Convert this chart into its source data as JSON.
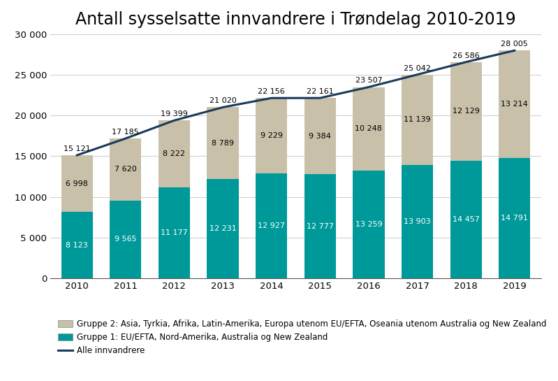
{
  "title": "Antall sysselsatte innvandrere i Trøndelag 2010-2019",
  "years": [
    2010,
    2011,
    2012,
    2013,
    2014,
    2015,
    2016,
    2017,
    2018,
    2019
  ],
  "gruppe1": [
    8123,
    9565,
    11177,
    12231,
    12927,
    12777,
    13259,
    13903,
    14457,
    14791
  ],
  "gruppe2": [
    6998,
    7620,
    8222,
    8789,
    9229,
    9384,
    10248,
    11139,
    12129,
    13214
  ],
  "totals": [
    15121,
    17185,
    19399,
    21020,
    22156,
    22161,
    23507,
    25042,
    26586,
    28005
  ],
  "color_gruppe1": "#009999",
  "color_gruppe2": "#C8C0A8",
  "color_line": "#1A3A5C",
  "ylim": [
    0,
    30000
  ],
  "yticks": [
    0,
    5000,
    10000,
    15000,
    20000,
    25000,
    30000
  ],
  "legend_gruppe2": "Gruppe 2: Asia, Tyrkia, Afrika, Latin-Amerika, Europa utenom EU/EFTA, Oseania utenom Australia og New Zealand",
  "legend_gruppe1": "Gruppe 1: EU/EFTA, Nord-Amerika, Australia og New Zealand",
  "legend_line": "Alle innvandrere",
  "title_fontsize": 17,
  "label_fontsize": 8,
  "legend_fontsize": 8.5,
  "tick_fontsize": 9.5,
  "bar_width": 0.65
}
